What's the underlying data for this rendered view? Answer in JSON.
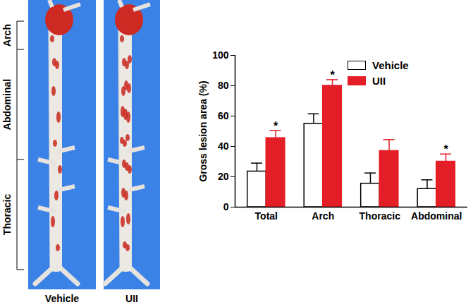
{
  "chart_data": {
    "type": "bar",
    "categories": [
      "Total",
      "Arch",
      "Thoracic",
      "Abdominal"
    ],
    "series": [
      {
        "name": "Vehicle",
        "color": "#ffffff",
        "values": [
          23.5,
          55,
          15.5,
          12
        ],
        "errors": [
          5.5,
          6.5,
          7,
          6
        ]
      },
      {
        "name": "UII",
        "color": "#e41e26",
        "values": [
          45.5,
          80,
          37,
          30
        ],
        "errors": [
          5,
          4,
          7.5,
          5
        ]
      }
    ],
    "ylabel": "Gross lesion area (%)",
    "ylim": [
      0,
      100
    ],
    "yticks": [
      0,
      20,
      40,
      60,
      80,
      100
    ],
    "legend": "top-right",
    "annotations": [
      {
        "category": "Total",
        "series": "UII",
        "text": "*"
      },
      {
        "category": "Arch",
        "series": "UII",
        "text": "*"
      },
      {
        "category": "Abdominal",
        "series": "UII",
        "text": "*"
      }
    ]
  },
  "image_panel": {
    "region_labels": [
      "Arch",
      "Abdominal",
      "Thoracic"
    ],
    "sample_labels": [
      "Vehicle",
      "UII"
    ]
  }
}
